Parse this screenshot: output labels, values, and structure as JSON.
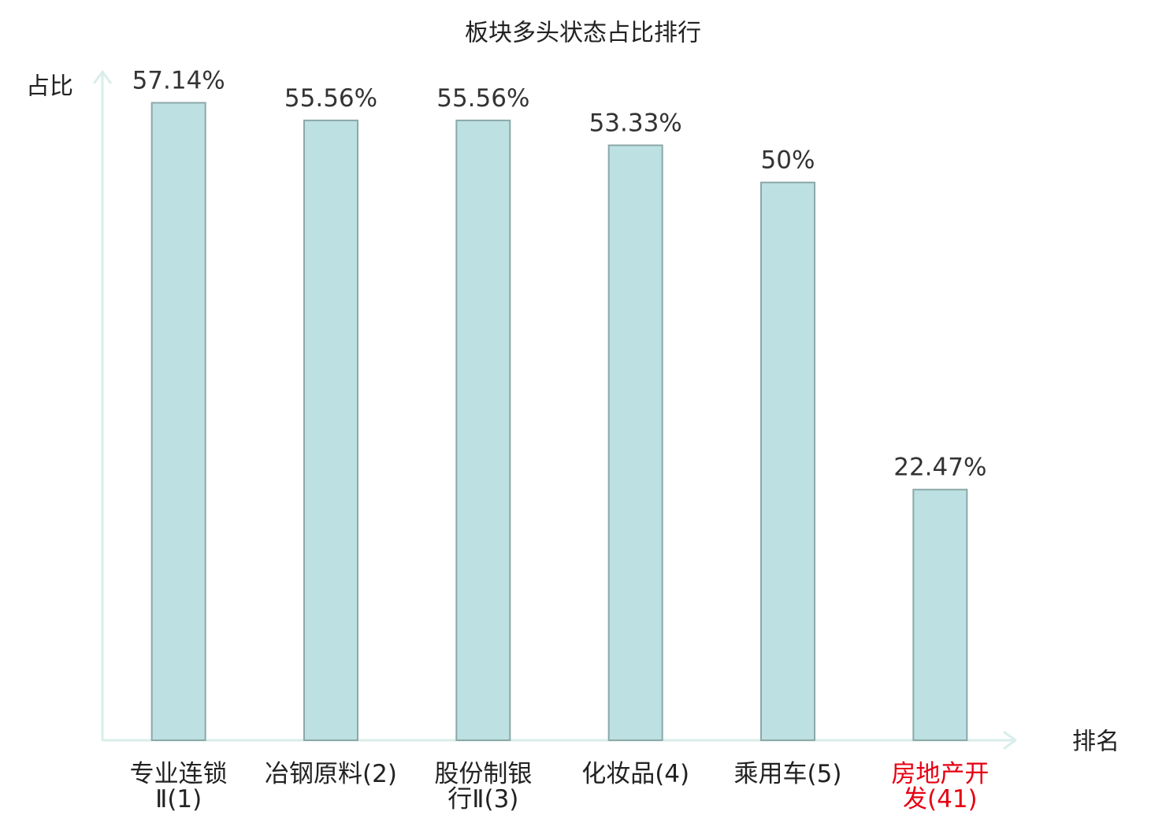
{
  "chart_data": {
    "type": "bar",
    "title": "板块多头状态占比排行",
    "xlabel": "排名",
    "ylabel": "占比",
    "categories": [
      "专业连锁Ⅱ(1)",
      "冶钢原料(2)",
      "股份制银行Ⅱ(3)",
      "化妆品(4)",
      "乘用车(5)",
      "房地产开发(41)"
    ],
    "values": [
      57.14,
      55.56,
      55.56,
      53.33,
      50,
      22.47
    ],
    "data_labels": [
      "57.14%",
      "55.56%",
      "55.56%",
      "53.33%",
      "50%",
      "22.47%"
    ],
    "ylim": [
      0,
      60
    ],
    "grid": false,
    "highlight_index": 5
  },
  "colors": {
    "bar_fill": "#bde0e3",
    "bar_stroke": "#8ca8a8",
    "axis": "#d9eeea",
    "tick_label": "#222222",
    "highlight_label": "#e60012"
  }
}
